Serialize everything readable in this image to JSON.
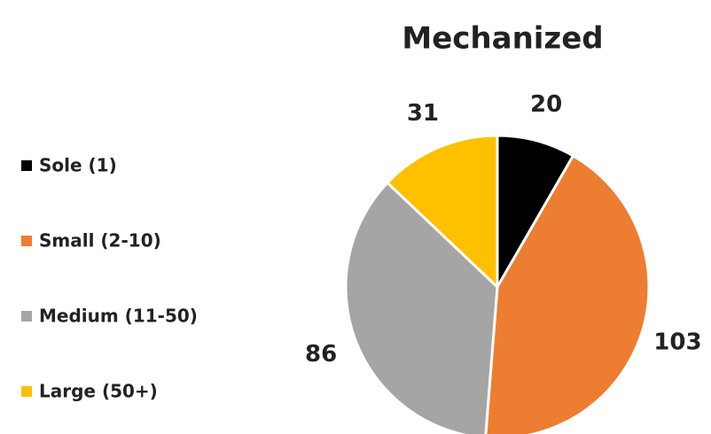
{
  "chart_data": {
    "type": "pie",
    "title": "Mechanized",
    "categories": [
      "Sole (1)",
      "Small (2-10)",
      "Medium (11-50)",
      "Large (50+)"
    ],
    "values": [
      20,
      103,
      86,
      31
    ],
    "colors": [
      "#000000",
      "#ED7D31",
      "#A5A5A5",
      "#FFC000"
    ],
    "legend": "left"
  }
}
